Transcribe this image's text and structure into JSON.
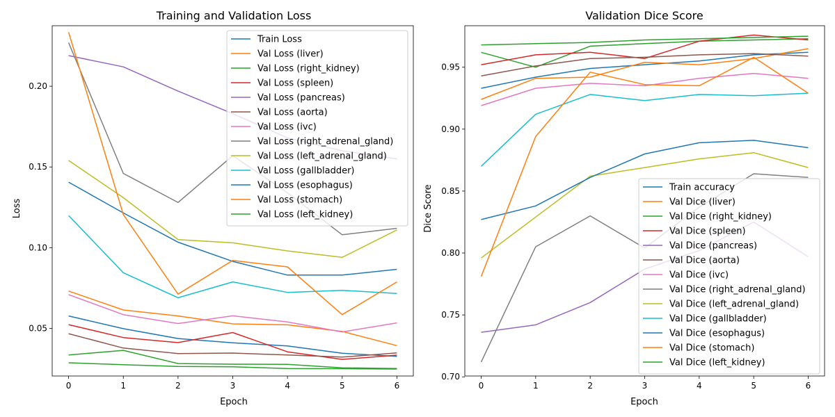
{
  "chart_data": [
    {
      "type": "line",
      "title": "Training and Validation Loss",
      "xlabel": "Epoch",
      "ylabel": "Loss",
      "xlim": [
        -0.3,
        6.3
      ],
      "ylim": [
        0.0205,
        0.2375
      ],
      "xticks": [
        "0",
        "1",
        "2",
        "3",
        "4",
        "5",
        "6"
      ],
      "yticks": [
        {
          "value": 0.05,
          "label": "0.05"
        },
        {
          "value": 0.1,
          "label": "0.10"
        },
        {
          "value": 0.15,
          "label": "0.15"
        },
        {
          "value": 0.2,
          "label": "0.20"
        }
      ],
      "grid": false,
      "legend_position": "upper right",
      "x": [
        0,
        1,
        2,
        3,
        4,
        5,
        6
      ],
      "series": [
        {
          "name": "Train Loss",
          "color": "#1f77b4",
          "values": [
            0.0577,
            0.0498,
            0.0437,
            0.0411,
            0.0391,
            0.0346,
            0.0327
          ]
        },
        {
          "name": "Val Loss (liver)",
          "color": "#ff7f0e",
          "values": [
            0.0731,
            0.0614,
            0.0577,
            0.0528,
            0.0522,
            0.0481,
            0.0393
          ]
        },
        {
          "name": "Val Loss (right_kidney)",
          "color": "#2ca02c",
          "values": [
            0.0287,
            0.0275,
            0.0264,
            0.0262,
            0.0251,
            0.025,
            0.0248
          ]
        },
        {
          "name": "Val Loss (spleen)",
          "color": "#d62728",
          "values": [
            0.0523,
            0.0443,
            0.0412,
            0.0474,
            0.0355,
            0.0308,
            0.0334
          ]
        },
        {
          "name": "Val Loss (pancreas)",
          "color": "#9467bd",
          "values": [
            0.219,
            0.212,
            0.197,
            0.183,
            0.168,
            0.16,
            0.155
          ]
        },
        {
          "name": "Val Loss (aorta)",
          "color": "#8c564b",
          "values": [
            0.0467,
            0.0378,
            0.0344,
            0.0347,
            0.0335,
            0.0322,
            0.0348
          ]
        },
        {
          "name": "Val Loss (ivc)",
          "color": "#e377c2",
          "values": [
            0.0709,
            0.0585,
            0.053,
            0.0578,
            0.054,
            0.0478,
            0.0534
          ]
        },
        {
          "name": "Val Loss (right_adrenal_gland)",
          "color": "#7f7f7f",
          "values": [
            0.227,
            0.146,
            0.128,
            0.157,
            0.134,
            0.108,
            0.112
          ]
        },
        {
          "name": "Val Loss (left_adrenal_gland)",
          "color": "#bcbd22",
          "values": [
            0.154,
            0.131,
            0.105,
            0.103,
            0.098,
            0.094,
            0.111
          ]
        },
        {
          "name": "Val Loss (gallbladder)",
          "color": "#17becf",
          "values": [
            0.1199,
            0.0845,
            0.069,
            0.0788,
            0.0723,
            0.0736,
            0.0716
          ]
        },
        {
          "name": "Val Loss (esophagus)",
          "color": "#1f77b4",
          "values": [
            0.1406,
            0.1215,
            0.1034,
            0.0915,
            0.083,
            0.083,
            0.0866
          ]
        },
        {
          "name": "Val Loss (stomach)",
          "color": "#ff7f0e",
          "values": [
            0.2335,
            0.1205,
            0.0712,
            0.0921,
            0.0881,
            0.0585,
            0.0788
          ]
        },
        {
          "name": "Val Loss (left_kidney)",
          "color": "#2ca02c",
          "values": [
            0.0335,
            0.0364,
            0.0282,
            0.0278,
            0.0277,
            0.0256,
            0.0251
          ]
        }
      ]
    },
    {
      "type": "line",
      "title": "Validation Dice Score",
      "xlabel": "Epoch",
      "ylabel": "Dice Score",
      "xlim": [
        -0.3,
        6.3
      ],
      "ylim": [
        0.7007,
        0.9835
      ],
      "xticks": [
        "0",
        "1",
        "2",
        "3",
        "4",
        "5",
        "6"
      ],
      "yticks": [
        {
          "value": 0.7,
          "label": "0.70"
        },
        {
          "value": 0.75,
          "label": "0.75"
        },
        {
          "value": 0.8,
          "label": "0.80"
        },
        {
          "value": 0.85,
          "label": "0.85"
        },
        {
          "value": 0.9,
          "label": "0.90"
        },
        {
          "value": 0.95,
          "label": "0.95"
        }
      ],
      "grid": false,
      "legend_position": "lower right",
      "x": [
        0,
        1,
        2,
        3,
        4,
        5,
        6
      ],
      "series": [
        {
          "name": "Train accuracy",
          "color": "#1f77b4",
          "values": [
            0.933,
            0.942,
            0.949,
            0.952,
            0.955,
            0.96,
            0.962
          ]
        },
        {
          "name": "Val Dice (liver)",
          "color": "#ff7f0e",
          "values": [
            0.924,
            0.941,
            0.942,
            0.954,
            0.952,
            0.957,
            0.965
          ]
        },
        {
          "name": "Val Dice (right_kidney)",
          "color": "#2ca02c",
          "values": [
            0.962,
            0.95,
            0.967,
            0.969,
            0.971,
            0.972,
            0.973
          ]
        },
        {
          "name": "Val Dice (spleen)",
          "color": "#d62728",
          "values": [
            0.952,
            0.96,
            0.962,
            0.957,
            0.971,
            0.976,
            0.972
          ]
        },
        {
          "name": "Val Dice (pancreas)",
          "color": "#9467bd",
          "values": [
            0.736,
            0.742,
            0.76,
            0.787,
            0.802,
            0.825,
            0.797
          ]
        },
        {
          "name": "Val Dice (aorta)",
          "color": "#8c564b",
          "values": [
            0.943,
            0.951,
            0.957,
            0.958,
            0.96,
            0.961,
            0.959
          ]
        },
        {
          "name": "Val Dice (ivc)",
          "color": "#e377c2",
          "values": [
            0.919,
            0.933,
            0.937,
            0.935,
            0.941,
            0.945,
            0.941
          ]
        },
        {
          "name": "Val Dice (right_adrenal_gland)",
          "color": "#7f7f7f",
          "values": [
            0.712,
            0.805,
            0.83,
            0.804,
            0.837,
            0.864,
            0.861
          ]
        },
        {
          "name": "Val Dice (left_adrenal_gland)",
          "color": "#bcbd22",
          "values": [
            0.796,
            0.829,
            0.862,
            0.869,
            0.876,
            0.881,
            0.869
          ]
        },
        {
          "name": "Val Dice (gallbladder)",
          "color": "#17becf",
          "values": [
            0.87,
            0.912,
            0.928,
            0.923,
            0.928,
            0.927,
            0.929
          ]
        },
        {
          "name": "Val Dice (esophagus)",
          "color": "#1f77b4",
          "values": [
            0.827,
            0.838,
            0.861,
            0.88,
            0.889,
            0.891,
            0.885
          ]
        },
        {
          "name": "Val Dice (stomach)",
          "color": "#ff7f0e",
          "values": [
            0.781,
            0.894,
            0.946,
            0.936,
            0.935,
            0.958,
            0.929
          ]
        },
        {
          "name": "Val Dice (left_kidney)",
          "color": "#2ca02c",
          "values": [
            0.968,
            0.969,
            0.97,
            0.972,
            0.973,
            0.974,
            0.975
          ]
        }
      ]
    }
  ]
}
